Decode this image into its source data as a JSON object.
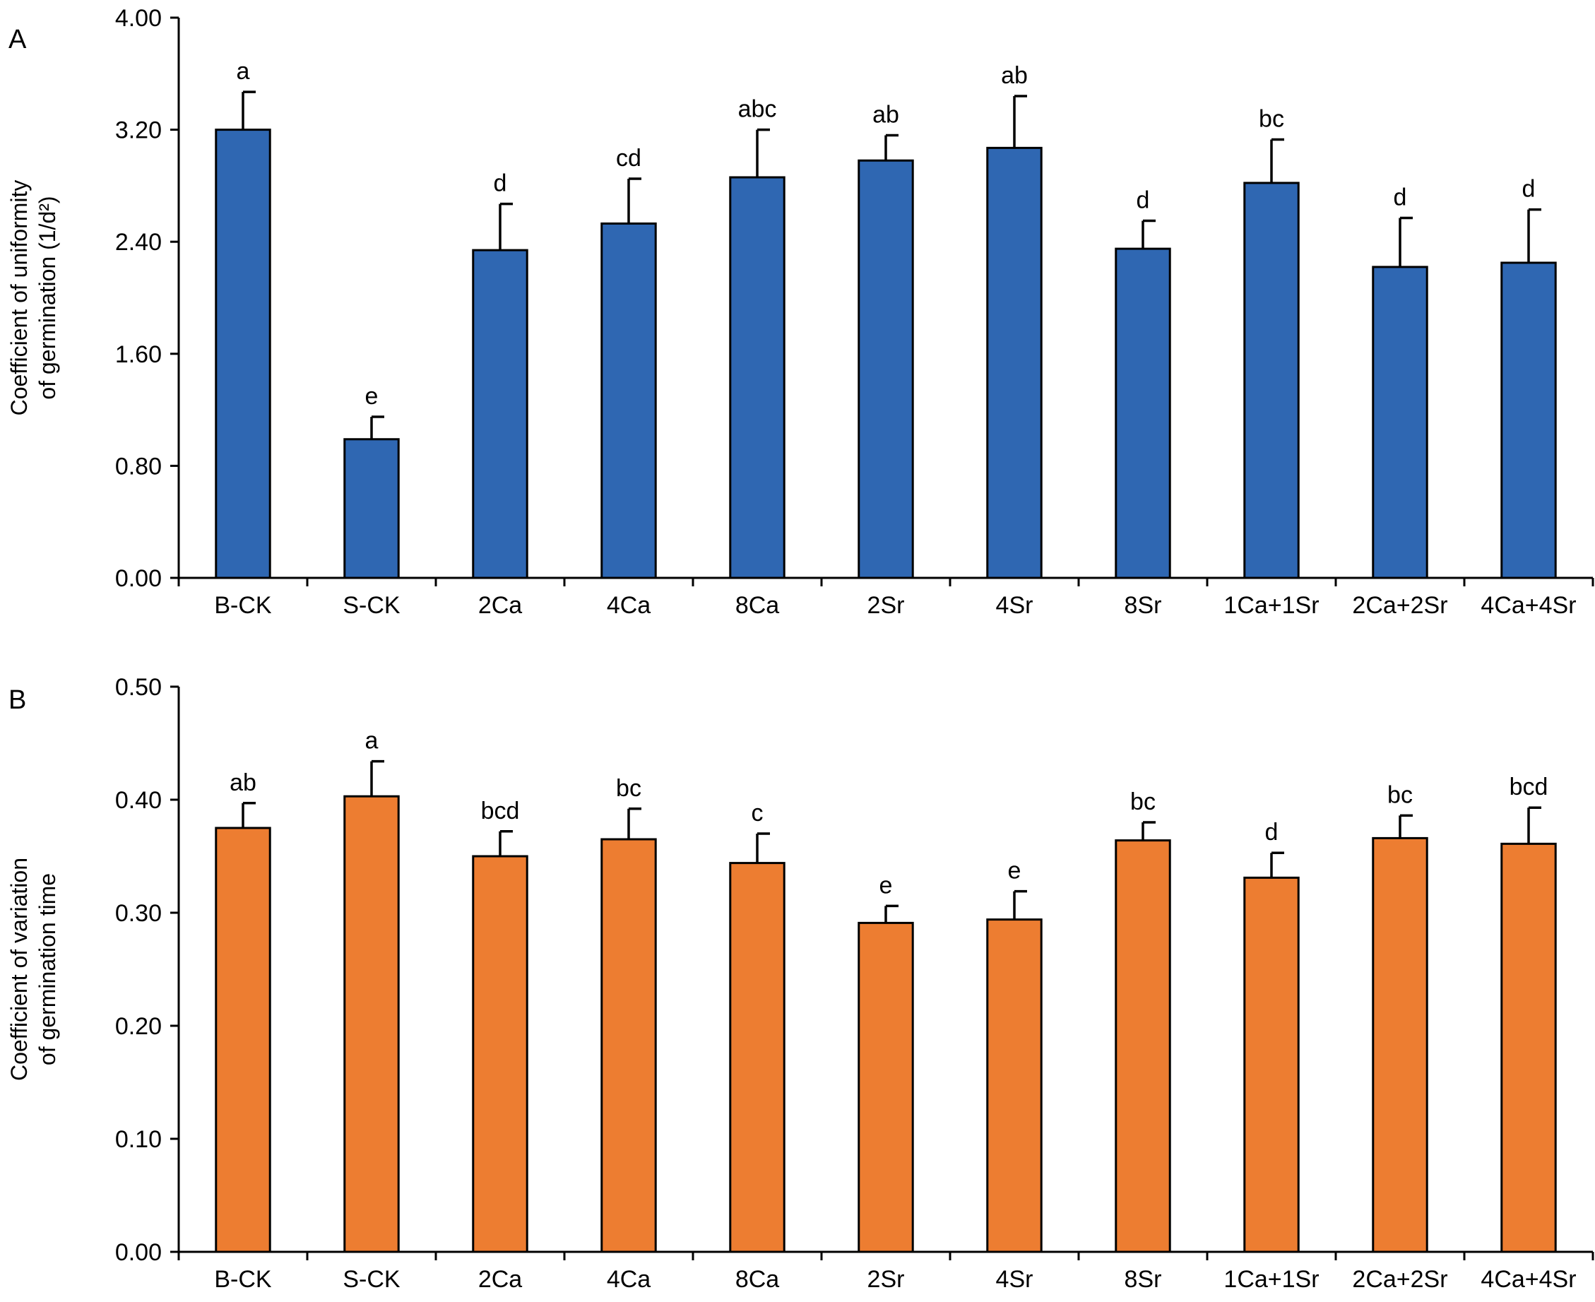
{
  "chart_data": [
    {
      "type": "bar",
      "panel_label": "A",
      "ylabel_lines": [
        "Coefficient of uniformity",
        "of germination (1/d²)"
      ],
      "ylim": [
        0,
        4.0
      ],
      "yticks": [
        "0.00",
        "0.80",
        "1.60",
        "2.40",
        "3.20",
        "4.00"
      ],
      "ytick_values": [
        0,
        0.8,
        1.6,
        2.4,
        3.2,
        4.0
      ],
      "categories": [
        "B-CK",
        "S-CK",
        "2Ca",
        "4Ca",
        "8Ca",
        "2Sr",
        "4Sr",
        "8Sr",
        "1Ca+1Sr",
        "2Ca+2Sr",
        "4Ca+4Sr"
      ],
      "values": [
        3.2,
        0.99,
        2.34,
        2.53,
        2.86,
        2.98,
        3.07,
        2.35,
        2.82,
        2.22,
        2.25
      ],
      "errors": [
        0.27,
        0.16,
        0.33,
        0.32,
        0.34,
        0.18,
        0.37,
        0.2,
        0.31,
        0.35,
        0.38
      ],
      "significance": [
        "a",
        "e",
        "d",
        "cd",
        "abc",
        "ab",
        "ab",
        "d",
        "bc",
        "d",
        "d"
      ],
      "color": "#2f67b2"
    },
    {
      "type": "bar",
      "panel_label": "B",
      "ylabel_lines": [
        "Coefficient of variation",
        "of germination time"
      ],
      "ylim": [
        0,
        0.5
      ],
      "yticks": [
        "0.00",
        "0.10",
        "0.20",
        "0.30",
        "0.40",
        "0.50"
      ],
      "ytick_values": [
        0,
        0.1,
        0.2,
        0.3,
        0.4,
        0.5
      ],
      "categories": [
        "B-CK",
        "S-CK",
        "2Ca",
        "4Ca",
        "8Ca",
        "2Sr",
        "4Sr",
        "8Sr",
        "1Ca+1Sr",
        "2Ca+2Sr",
        "4Ca+4Sr"
      ],
      "values": [
        0.375,
        0.403,
        0.35,
        0.365,
        0.344,
        0.291,
        0.294,
        0.364,
        0.331,
        0.366,
        0.361
      ],
      "errors": [
        0.022,
        0.031,
        0.022,
        0.027,
        0.026,
        0.015,
        0.025,
        0.016,
        0.022,
        0.02,
        0.032
      ],
      "significance": [
        "ab",
        "a",
        "bcd",
        "bc",
        "c",
        "e",
        "e",
        "bc",
        "d",
        "bc",
        "bcd"
      ],
      "color": "#ed7d31"
    }
  ]
}
